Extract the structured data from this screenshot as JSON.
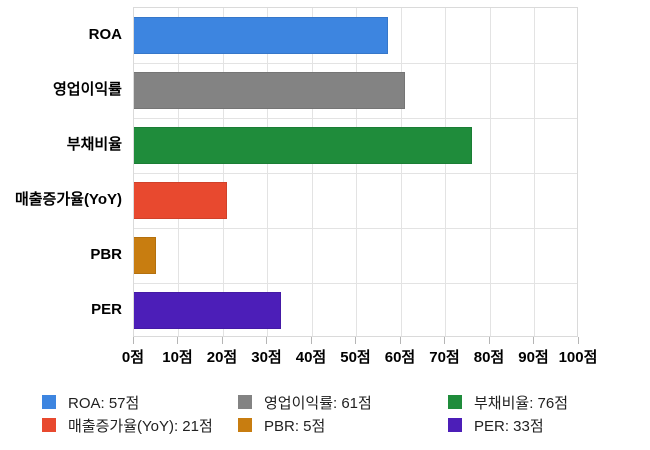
{
  "chart_data": {
    "type": "bar",
    "orientation": "horizontal",
    "title": "",
    "xlabel": "",
    "ylabel": "",
    "unit_suffix": "점",
    "xlim": [
      0,
      100
    ],
    "x_tick_step": 10,
    "grid": true,
    "legend_position": "bottom",
    "categories": [
      "ROA",
      "영업이익률",
      "부채비율",
      "매출증가율(YoY)",
      "PBR",
      "PER"
    ],
    "values": [
      57,
      61,
      76,
      21,
      5,
      33
    ],
    "colors": [
      "#3D85E0",
      "#838383",
      "#1F8C3B",
      "#E8492F",
      "#C87D10",
      "#4C1EB8"
    ],
    "x_ticks": [
      "0점",
      "10점",
      "20점",
      "30점",
      "40점",
      "50점",
      "60점",
      "70점",
      "80점",
      "90점",
      "100점"
    ],
    "legend": [
      {
        "label": "ROA: 57점",
        "color": "#3D85E0"
      },
      {
        "label": "영업이익률: 61점",
        "color": "#838383"
      },
      {
        "label": "부채비율: 76점",
        "color": "#1F8C3B"
      },
      {
        "label": "매출증가율(YoY): 21점",
        "color": "#E8492F"
      },
      {
        "label": "PBR: 5점",
        "color": "#C87D10"
      },
      {
        "label": "PER: 33점",
        "color": "#4C1EB8"
      }
    ]
  }
}
